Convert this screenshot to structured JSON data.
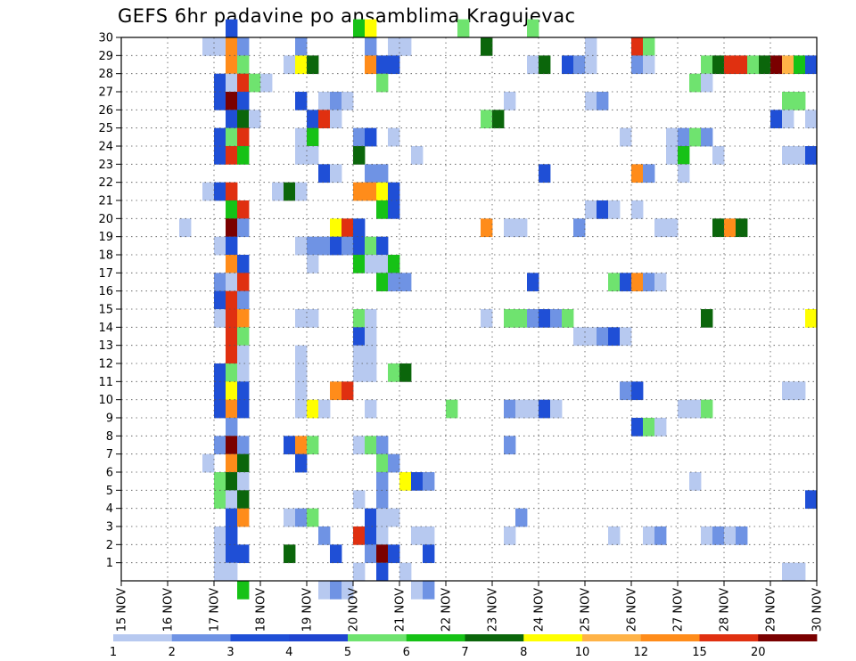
{
  "chart_data": {
    "type": "heatmap",
    "title": "GEFS 6hr padavine po ansamblima Kragujevac",
    "x_ticks": [
      "15 NOV",
      "16 NOV",
      "17 NOV",
      "18 NOV",
      "19 NOV",
      "20 NOV",
      "21 NOV",
      "22 NOV",
      "23 NOV",
      "24 NOV",
      "25 NOV",
      "26 NOV",
      "27 NOV",
      "28 NOV",
      "29 NOV",
      "30 NOV"
    ],
    "y_ticks": [
      "1",
      "2",
      "3",
      "4",
      "5",
      "6",
      "7",
      "8",
      "9",
      "10",
      "11",
      "12",
      "13",
      "14",
      "15",
      "16",
      "17",
      "18",
      "19",
      "20",
      "21",
      "22",
      "23",
      "24",
      "25",
      "26",
      "27",
      "28",
      "29",
      "30"
    ],
    "xlim": [
      0,
      60
    ],
    "ylim": [
      0,
      30
    ],
    "grid": true,
    "steps_per_day": 4,
    "levels": [
      "1",
      "2",
      "3",
      "4",
      "5",
      "6",
      "7",
      "8",
      "10",
      "12",
      "15",
      "20"
    ],
    "colors": [
      "#b7c9f0",
      "#6f93e4",
      "#1f4fd6",
      "#1f45d0",
      "#6fe36f",
      "#16c216",
      "#0b660b",
      "#ffff00",
      "#ffb347",
      "#ff8c1a",
      "#e03010",
      "#7a0000"
    ],
    "cells": [
      [
        9,
        30,
        3
      ],
      [
        20,
        30,
        6
      ],
      [
        21,
        30,
        8
      ],
      [
        29,
        30,
        5
      ],
      [
        35,
        30,
        5
      ],
      [
        7,
        29,
        1
      ],
      [
        8,
        29,
        1
      ],
      [
        9,
        29,
        10
      ],
      [
        10,
        29,
        2
      ],
      [
        15,
        29,
        2
      ],
      [
        21,
        29,
        2
      ],
      [
        23,
        29,
        1
      ],
      [
        24,
        29,
        1
      ],
      [
        31,
        29,
        7
      ],
      [
        40,
        29,
        1
      ],
      [
        44,
        29,
        11
      ],
      [
        45,
        29,
        5
      ],
      [
        9,
        28,
        10
      ],
      [
        10,
        28,
        5
      ],
      [
        14,
        28,
        1
      ],
      [
        15,
        28,
        8
      ],
      [
        16,
        28,
        7
      ],
      [
        21,
        28,
        10
      ],
      [
        22,
        28,
        3
      ],
      [
        23,
        28,
        3
      ],
      [
        35,
        28,
        1
      ],
      [
        36,
        28,
        7
      ],
      [
        38,
        28,
        3
      ],
      [
        39,
        28,
        2
      ],
      [
        40,
        28,
        1
      ],
      [
        44,
        28,
        2
      ],
      [
        45,
        28,
        1
      ],
      [
        50,
        28,
        5
      ],
      [
        51,
        28,
        7
      ],
      [
        52,
        28,
        11
      ],
      [
        53,
        28,
        11
      ],
      [
        54,
        28,
        5
      ],
      [
        55,
        28,
        7
      ],
      [
        56,
        28,
        12
      ],
      [
        57,
        28,
        9
      ],
      [
        58,
        28,
        6
      ],
      [
        59,
        28,
        3
      ],
      [
        8,
        27,
        3
      ],
      [
        9,
        27,
        1
      ],
      [
        10,
        27,
        11
      ],
      [
        11,
        27,
        5
      ],
      [
        12,
        27,
        1
      ],
      [
        22,
        27,
        5
      ],
      [
        49,
        27,
        5
      ],
      [
        50,
        27,
        1
      ],
      [
        8,
        26,
        3
      ],
      [
        9,
        26,
        12
      ],
      [
        10,
        26,
        3
      ],
      [
        15,
        26,
        3
      ],
      [
        17,
        26,
        1
      ],
      [
        18,
        26,
        2
      ],
      [
        19,
        26,
        1
      ],
      [
        33,
        26,
        1
      ],
      [
        40,
        26,
        1
      ],
      [
        41,
        26,
        2
      ],
      [
        57,
        26,
        5
      ],
      [
        58,
        26,
        5
      ],
      [
        9,
        25,
        3
      ],
      [
        10,
        25,
        7
      ],
      [
        11,
        25,
        1
      ],
      [
        16,
        25,
        3
      ],
      [
        17,
        25,
        11
      ],
      [
        18,
        25,
        1
      ],
      [
        31,
        25,
        5
      ],
      [
        32,
        25,
        7
      ],
      [
        56,
        25,
        3
      ],
      [
        57,
        25,
        1
      ],
      [
        59,
        25,
        1
      ],
      [
        8,
        24,
        3
      ],
      [
        9,
        24,
        5
      ],
      [
        10,
        24,
        11
      ],
      [
        15,
        24,
        1
      ],
      [
        16,
        24,
        6
      ],
      [
        20,
        24,
        2
      ],
      [
        21,
        24,
        3
      ],
      [
        23,
        24,
        1
      ],
      [
        43,
        24,
        1
      ],
      [
        47,
        24,
        1
      ],
      [
        48,
        24,
        2
      ],
      [
        49,
        24,
        5
      ],
      [
        50,
        24,
        2
      ],
      [
        8,
        23,
        3
      ],
      [
        9,
        23,
        11
      ],
      [
        10,
        23,
        6
      ],
      [
        15,
        23,
        1
      ],
      [
        16,
        23,
        1
      ],
      [
        20,
        23,
        7
      ],
      [
        25,
        23,
        1
      ],
      [
        47,
        23,
        1
      ],
      [
        48,
        23,
        6
      ],
      [
        51,
        23,
        1
      ],
      [
        57,
        23,
        1
      ],
      [
        58,
        23,
        1
      ],
      [
        59,
        23,
        3
      ],
      [
        17,
        22,
        3
      ],
      [
        18,
        22,
        1
      ],
      [
        21,
        22,
        2
      ],
      [
        22,
        22,
        2
      ],
      [
        36,
        22,
        3
      ],
      [
        44,
        22,
        10
      ],
      [
        45,
        22,
        2
      ],
      [
        48,
        22,
        1
      ],
      [
        7,
        21,
        1
      ],
      [
        8,
        21,
        3
      ],
      [
        9,
        21,
        11
      ],
      [
        13,
        21,
        1
      ],
      [
        14,
        21,
        7
      ],
      [
        15,
        21,
        1
      ],
      [
        20,
        21,
        10
      ],
      [
        21,
        21,
        10
      ],
      [
        22,
        21,
        8
      ],
      [
        23,
        21,
        3
      ],
      [
        9,
        20,
        6
      ],
      [
        10,
        20,
        11
      ],
      [
        22,
        20,
        6
      ],
      [
        23,
        20,
        3
      ],
      [
        40,
        20,
        1
      ],
      [
        41,
        20,
        3
      ],
      [
        42,
        20,
        1
      ],
      [
        44,
        20,
        1
      ],
      [
        5,
        19,
        1
      ],
      [
        9,
        19,
        12
      ],
      [
        10,
        19,
        2
      ],
      [
        18,
        19,
        8
      ],
      [
        19,
        19,
        11
      ],
      [
        20,
        19,
        3
      ],
      [
        31,
        19,
        10
      ],
      [
        33,
        19,
        1
      ],
      [
        34,
        19,
        1
      ],
      [
        39,
        19,
        2
      ],
      [
        46,
        19,
        1
      ],
      [
        47,
        19,
        1
      ],
      [
        51,
        19,
        7
      ],
      [
        52,
        19,
        10
      ],
      [
        53,
        19,
        7
      ],
      [
        8,
        18,
        1
      ],
      [
        9,
        18,
        3
      ],
      [
        15,
        18,
        1
      ],
      [
        16,
        18,
        2
      ],
      [
        17,
        18,
        2
      ],
      [
        18,
        18,
        3
      ],
      [
        19,
        18,
        2
      ],
      [
        20,
        18,
        3
      ],
      [
        21,
        18,
        5
      ],
      [
        22,
        18,
        3
      ],
      [
        9,
        17,
        10
      ],
      [
        10,
        17,
        3
      ],
      [
        16,
        17,
        1
      ],
      [
        20,
        17,
        6
      ],
      [
        21,
        17,
        1
      ],
      [
        22,
        17,
        1
      ],
      [
        23,
        17,
        6
      ],
      [
        8,
        16,
        2
      ],
      [
        9,
        16,
        1
      ],
      [
        10,
        16,
        11
      ],
      [
        22,
        16,
        6
      ],
      [
        23,
        16,
        2
      ],
      [
        24,
        16,
        2
      ],
      [
        35,
        16,
        3
      ],
      [
        42,
        16,
        5
      ],
      [
        43,
        16,
        3
      ],
      [
        44,
        16,
        10
      ],
      [
        45,
        16,
        2
      ],
      [
        46,
        16,
        1
      ],
      [
        8,
        15,
        3
      ],
      [
        9,
        15,
        11
      ],
      [
        10,
        15,
        2
      ],
      [
        8,
        14,
        1
      ],
      [
        9,
        14,
        11
      ],
      [
        10,
        14,
        10
      ],
      [
        15,
        14,
        1
      ],
      [
        16,
        14,
        1
      ],
      [
        20,
        14,
        5
      ],
      [
        21,
        14,
        1
      ],
      [
        31,
        14,
        1
      ],
      [
        33,
        14,
        5
      ],
      [
        34,
        14,
        5
      ],
      [
        35,
        14,
        2
      ],
      [
        36,
        14,
        3
      ],
      [
        37,
        14,
        2
      ],
      [
        38,
        14,
        5
      ],
      [
        50,
        14,
        7
      ],
      [
        59,
        14,
        8
      ],
      [
        9,
        13,
        11
      ],
      [
        10,
        13,
        5
      ],
      [
        20,
        13,
        3
      ],
      [
        21,
        13,
        1
      ],
      [
        39,
        13,
        1
      ],
      [
        40,
        13,
        1
      ],
      [
        41,
        13,
        2
      ],
      [
        42,
        13,
        3
      ],
      [
        43,
        13,
        1
      ],
      [
        9,
        12,
        11
      ],
      [
        10,
        12,
        1
      ],
      [
        15,
        12,
        1
      ],
      [
        20,
        12,
        1
      ],
      [
        21,
        12,
        1
      ],
      [
        8,
        11,
        3
      ],
      [
        9,
        11,
        5
      ],
      [
        10,
        11,
        1
      ],
      [
        15,
        11,
        1
      ],
      [
        20,
        11,
        1
      ],
      [
        21,
        11,
        1
      ],
      [
        23,
        11,
        5
      ],
      [
        24,
        11,
        7
      ],
      [
        8,
        10,
        3
      ],
      [
        9,
        10,
        8
      ],
      [
        10,
        10,
        3
      ],
      [
        15,
        10,
        1
      ],
      [
        18,
        10,
        10
      ],
      [
        19,
        10,
        11
      ],
      [
        43,
        10,
        2
      ],
      [
        44,
        10,
        3
      ],
      [
        57,
        10,
        1
      ],
      [
        58,
        10,
        1
      ],
      [
        8,
        9,
        3
      ],
      [
        9,
        9,
        10
      ],
      [
        10,
        9,
        3
      ],
      [
        15,
        9,
        1
      ],
      [
        16,
        9,
        8
      ],
      [
        17,
        9,
        1
      ],
      [
        21,
        9,
        1
      ],
      [
        28,
        9,
        5
      ],
      [
        33,
        9,
        2
      ],
      [
        34,
        9,
        1
      ],
      [
        35,
        9,
        1
      ],
      [
        36,
        9,
        3
      ],
      [
        37,
        9,
        1
      ],
      [
        48,
        9,
        1
      ],
      [
        49,
        9,
        1
      ],
      [
        50,
        9,
        5
      ],
      [
        9,
        8,
        2
      ],
      [
        44,
        8,
        3
      ],
      [
        45,
        8,
        5
      ],
      [
        46,
        8,
        1
      ],
      [
        8,
        7,
        2
      ],
      [
        9,
        7,
        12
      ],
      [
        10,
        7,
        2
      ],
      [
        14,
        7,
        3
      ],
      [
        15,
        7,
        10
      ],
      [
        16,
        7,
        5
      ],
      [
        20,
        7,
        1
      ],
      [
        21,
        7,
        5
      ],
      [
        22,
        7,
        2
      ],
      [
        33,
        7,
        2
      ],
      [
        7,
        6,
        1
      ],
      [
        9,
        6,
        10
      ],
      [
        10,
        6,
        7
      ],
      [
        15,
        6,
        3
      ],
      [
        22,
        6,
        5
      ],
      [
        23,
        6,
        2
      ],
      [
        8,
        5,
        5
      ],
      [
        9,
        5,
        7
      ],
      [
        10,
        5,
        1
      ],
      [
        22,
        5,
        2
      ],
      [
        24,
        5,
        8
      ],
      [
        25,
        5,
        3
      ],
      [
        26,
        5,
        2
      ],
      [
        49,
        5,
        1
      ],
      [
        8,
        4,
        5
      ],
      [
        9,
        4,
        1
      ],
      [
        10,
        4,
        7
      ],
      [
        20,
        4,
        1
      ],
      [
        22,
        4,
        2
      ],
      [
        59,
        4,
        3
      ],
      [
        9,
        3,
        3
      ],
      [
        10,
        3,
        10
      ],
      [
        14,
        3,
        1
      ],
      [
        15,
        3,
        2
      ],
      [
        16,
        3,
        5
      ],
      [
        21,
        3,
        3
      ],
      [
        22,
        3,
        1
      ],
      [
        23,
        3,
        1
      ],
      [
        34,
        3,
        2
      ],
      [
        8,
        2,
        1
      ],
      [
        9,
        2,
        3
      ],
      [
        17,
        2,
        2
      ],
      [
        20,
        2,
        11
      ],
      [
        21,
        2,
        3
      ],
      [
        22,
        2,
        1
      ],
      [
        25,
        2,
        1
      ],
      [
        26,
        2,
        1
      ],
      [
        33,
        2,
        1
      ],
      [
        42,
        2,
        1
      ],
      [
        45,
        2,
        1
      ],
      [
        46,
        2,
        2
      ],
      [
        50,
        2,
        1
      ],
      [
        51,
        2,
        2
      ],
      [
        52,
        2,
        1
      ],
      [
        53,
        2,
        2
      ],
      [
        8,
        1,
        1
      ],
      [
        9,
        1,
        3
      ],
      [
        10,
        1,
        3
      ],
      [
        14,
        1,
        7
      ],
      [
        18,
        1,
        3
      ],
      [
        21,
        1,
        2
      ],
      [
        22,
        1,
        12
      ],
      [
        23,
        1,
        3
      ],
      [
        26,
        1,
        3
      ],
      [
        8,
        0,
        1
      ],
      [
        9,
        0,
        1
      ],
      [
        20,
        0,
        1
      ],
      [
        22,
        0,
        3
      ],
      [
        24,
        0,
        1
      ],
      [
        57,
        0,
        1
      ],
      [
        58,
        0,
        1
      ],
      [
        10,
        -1,
        6
      ],
      [
        17,
        -1,
        1
      ],
      [
        18,
        -1,
        2
      ],
      [
        19,
        -1,
        1
      ],
      [
        25,
        -1,
        1
      ],
      [
        26,
        -1,
        2
      ]
    ]
  }
}
